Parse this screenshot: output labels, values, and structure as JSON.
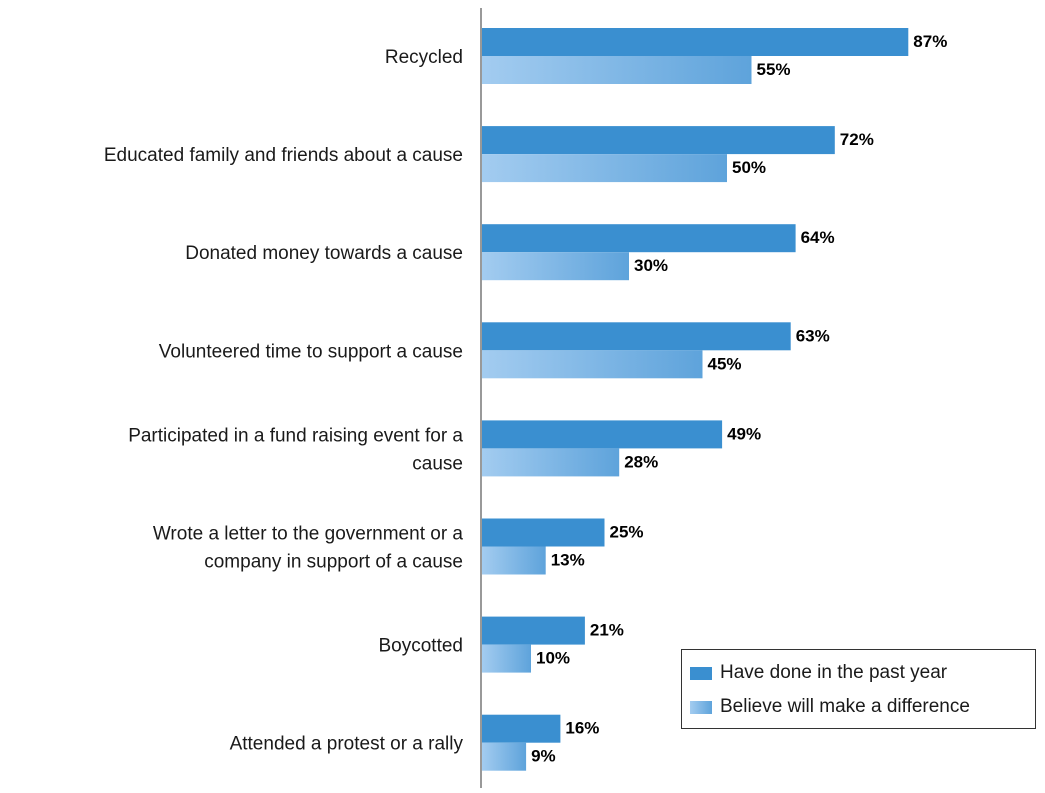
{
  "chart_data": {
    "type": "bar",
    "orientation": "horizontal",
    "categories": [
      "Recycled",
      "Educated family and friends about a cause",
      "Donated money towards a cause",
      "Volunteered time to support a cause",
      "Participated in a fund raising event for a cause",
      "Wrote a letter to the government or a company in support of a cause",
      "Boycotted",
      "Attended a protest or a rally"
    ],
    "category_lines": [
      [
        "Recycled"
      ],
      [
        "Educated family and friends about a cause"
      ],
      [
        "Donated money towards a cause"
      ],
      [
        "Volunteered time to support a cause"
      ],
      [
        "Participated in a fund raising event for a",
        "cause"
      ],
      [
        "Wrote a letter to the government or a",
        "company in support of a cause"
      ],
      [
        "Boycotted"
      ],
      [
        "Attended a protest or a rally"
      ]
    ],
    "series": [
      {
        "name": "Have done in the past year",
        "values": [
          87,
          72,
          64,
          63,
          49,
          25,
          21,
          16
        ],
        "color": "#3a8fd0"
      },
      {
        "name": "Believe will make a difference",
        "values": [
          55,
          50,
          30,
          45,
          28,
          13,
          10,
          9
        ],
        "color_start": "#a3ccf0",
        "color_end": "#5ea3db"
      }
    ],
    "value_suffix": "%",
    "xlim": [
      0,
      100
    ],
    "grid": false,
    "legend_position": "bottom-right"
  }
}
